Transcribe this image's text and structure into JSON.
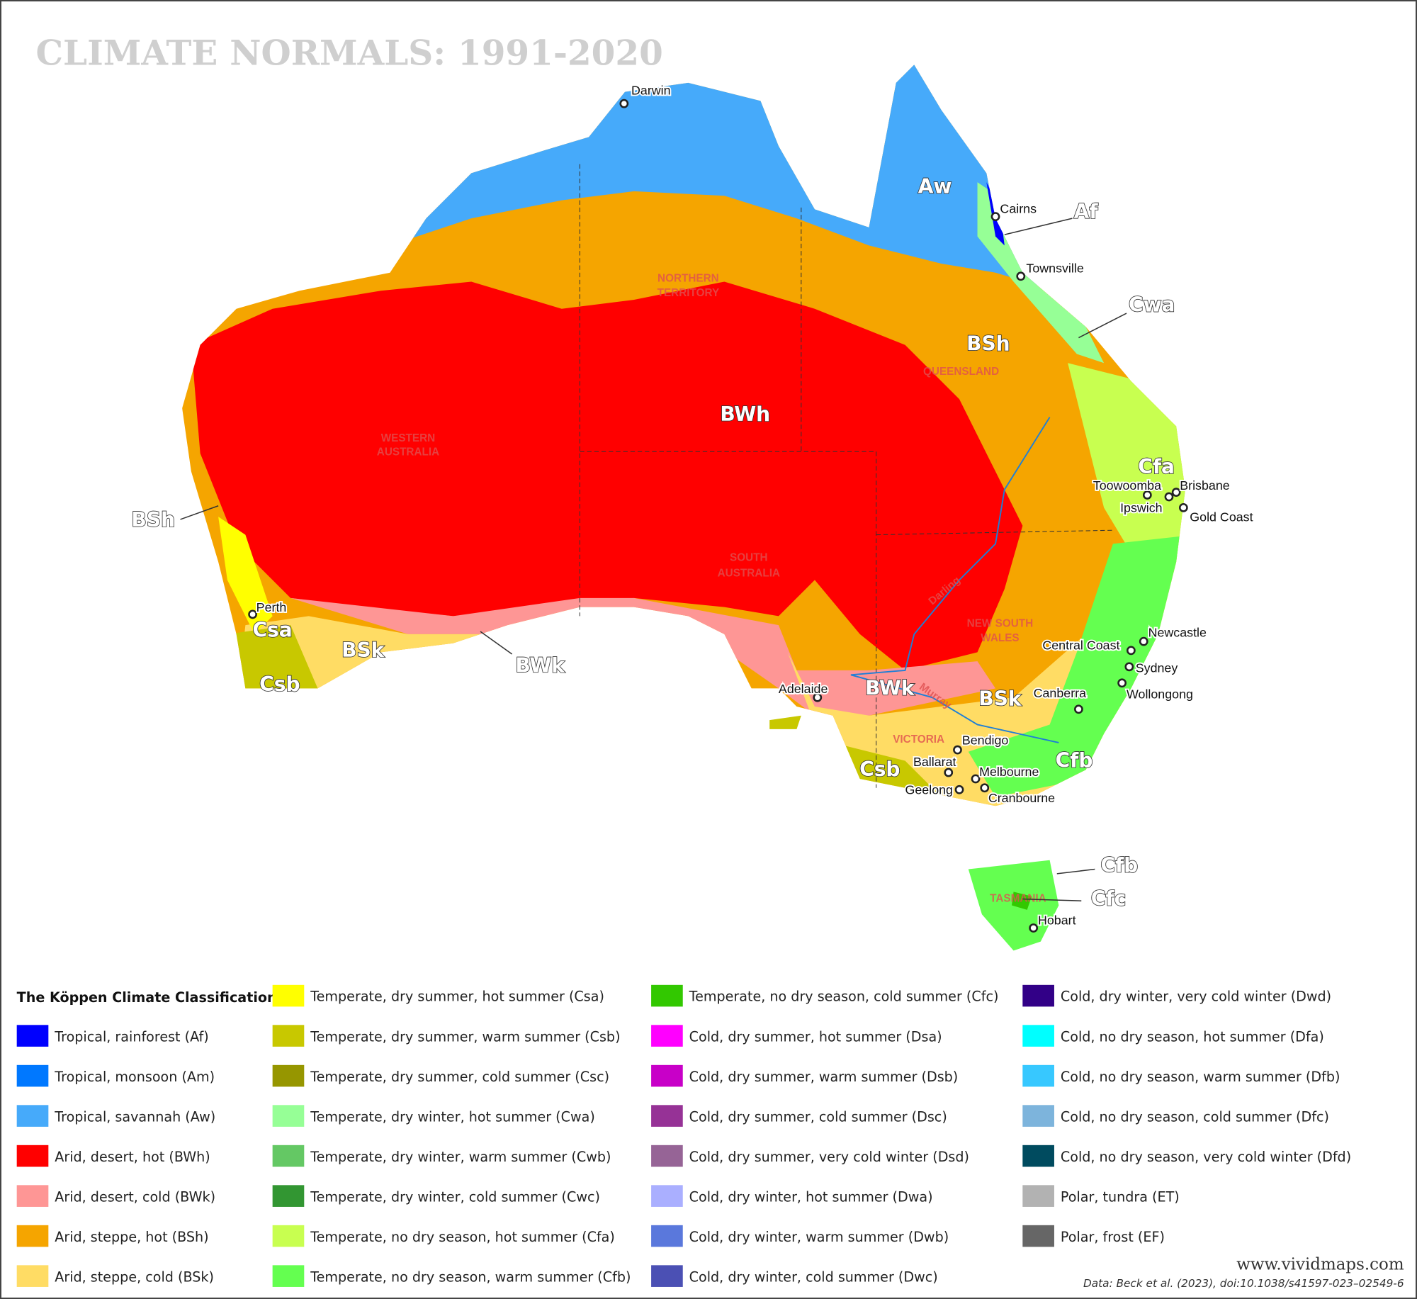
{
  "title": "CLIMATE NORMALS: 1991-2020",
  "regions": {
    "nt": [
      "NORTHERN",
      "TERRITORY"
    ],
    "qld": "QUEENSLAND",
    "wa": [
      "WESTERN",
      "AUSTRALIA"
    ],
    "sa": [
      "SOUTH",
      "AUSTRALIA"
    ],
    "nsw": [
      "NEW SOUTH",
      "WALES"
    ],
    "vic": "VICTORIA",
    "tas": "TASMANIA"
  },
  "rivers": {
    "darling": "Darling",
    "murray": "Murray"
  },
  "cities": [
    "Darwin",
    "Cairns",
    "Townsville",
    "Toowoomba",
    "Brisbane",
    "Ipswich",
    "Gold Coast",
    "Newcastle",
    "Central Coast",
    "Sydney",
    "Wollongong",
    "Canberra",
    "Bendigo",
    "Ballarat",
    "Melbourne",
    "Geelong",
    "Cranbourne",
    "Adelaide",
    "Perth",
    "Hobart"
  ],
  "codes": [
    "Aw",
    "Af",
    "Cwa",
    "BSh",
    "BWh",
    "Cfa",
    "BSh",
    "Csa",
    "BSk",
    "BWk",
    "Csb",
    "BWk",
    "BSk",
    "Cfb",
    "Csb",
    "Cfb",
    "Cfc"
  ],
  "legend": {
    "title": "The Köppen Climate Classification",
    "items": [
      {
        "label": "Tropical, rainforest (Af)",
        "color": "#0000fe"
      },
      {
        "label": "Tropical, monsoon (Am)",
        "color": "#0078ff"
      },
      {
        "label": "Tropical, savannah (Aw)",
        "color": "#46aafa"
      },
      {
        "label": "Arid, desert, hot (BWh)",
        "color": "#ff0000"
      },
      {
        "label": "Arid, desert, cold (BWk)",
        "color": "#fe9695"
      },
      {
        "label": "Arid, steppe, hot (BSh)",
        "color": "#f5a500"
      },
      {
        "label": "Arid, steppe, cold (BSk)",
        "color": "#ffdc64"
      },
      {
        "label": "Temperate, dry summer, hot summer (Csa)",
        "color": "#ffff00"
      },
      {
        "label": "Temperate, dry summer, warm summer (Csb)",
        "color": "#c8c800"
      },
      {
        "label": "Temperate, dry summer, cold summer (Csc)",
        "color": "#969600"
      },
      {
        "label": "Temperate, dry winter, hot summer (Cwa)",
        "color": "#96ff96"
      },
      {
        "label": "Temperate, dry winter, warm summer (Cwb)",
        "color": "#64c864"
      },
      {
        "label": "Temperate, dry winter, cold summer  (Cwc)",
        "color": "#329632"
      },
      {
        "label": "Temperate, no dry season, hot summer (Cfa)",
        "color": "#c8ff50"
      },
      {
        "label": "Temperate, no dry season, warm summer (Cfb)",
        "color": "#64ff50"
      },
      {
        "label": "Temperate, no dry season, cold summer (Cfc)",
        "color": "#32c800"
      },
      {
        "label": "Cold, dry summer, hot summer (Dsa)",
        "color": "#ff00ff"
      },
      {
        "label": "Cold, dry summer, warm summer (Dsb)",
        "color": "#c800c8"
      },
      {
        "label": "Cold, dry summer, cold summer (Dsc)",
        "color": "#963296"
      },
      {
        "label": "Cold, dry summer, very cold winter (Dsd)",
        "color": "#966496"
      },
      {
        "label": "Cold, dry winter, hot summer (Dwa)",
        "color": "#aaafff"
      },
      {
        "label": "Cold, dry winter, warm summer (Dwb)",
        "color": "#5a78dc"
      },
      {
        "label": "Cold, dry winter, cold summer (Dwc)",
        "color": "#4b50b4"
      },
      {
        "label": "Cold, dry winter, very cold winter (Dwd)",
        "color": "#320087"
      },
      {
        "label": "Cold, no dry season, hot summer (Dfa)",
        "color": "#00ffff"
      },
      {
        "label": "Cold, no dry season, warm summer (Dfb)",
        "color": "#37c8ff"
      },
      {
        "label": "Cold, no dry season, cold summer (Dfc)",
        "color": "#7db4dc"
      },
      {
        "label": "Cold, no dry season, very cold winter (Dfd)",
        "color": "#004b5f"
      },
      {
        "label": "Polar, tundra (ET)",
        "color": "#b2b2b2"
      },
      {
        "label": "Polar, frost (EF)",
        "color": "#666666"
      }
    ]
  },
  "credits": {
    "site": "www.vividmaps.com",
    "source": "Data: Beck et al. (2023), doi:10.1038/s41597-023–02549-6"
  }
}
